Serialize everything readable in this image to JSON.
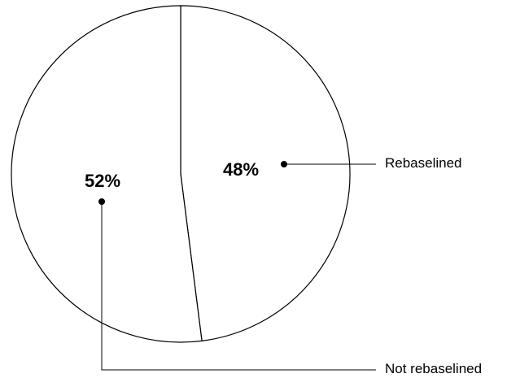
{
  "chart_data": {
    "type": "pie",
    "title": "",
    "start_angle_deg": 0,
    "direction": "clockwise",
    "legend": "callouts",
    "slices": [
      {
        "label": "Rebaselined",
        "value": 48,
        "value_label": "48%"
      },
      {
        "label": "Not rebaselined",
        "value": 52,
        "value_label": "52%"
      }
    ]
  },
  "colors": {
    "stroke": "#000000",
    "fill": "#ffffff",
    "text": "#000000"
  }
}
